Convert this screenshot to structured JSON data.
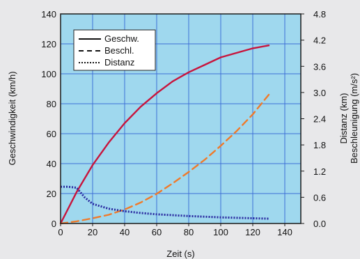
{
  "chart_data": {
    "type": "line",
    "xlabel": "Zeit (s)",
    "ylabel_left": "Geschwindigkeit (km/h)",
    "ylabel_right_1": "Distanz (km)",
    "ylabel_right_2": "Beschleunigung (m/s²)",
    "xlim": [
      0,
      150
    ],
    "ylim_left": [
      0,
      140
    ],
    "ylim_right": [
      0,
      4.8
    ],
    "x_ticks": [
      "0",
      "20",
      "40",
      "60",
      "80",
      "100",
      "120",
      "140"
    ],
    "y_ticks_left": [
      "0",
      "20",
      "40",
      "60",
      "80",
      "100",
      "120",
      "140"
    ],
    "y_ticks_right": [
      "0.0",
      "0.6",
      "1.2",
      "1.8",
      "2.4",
      "3.0",
      "3.6",
      "4.2",
      "4.8"
    ],
    "grid": true,
    "legend_position": "top-left",
    "background_color": "#9fd8ee",
    "series": [
      {
        "name": "Geschw.",
        "axis": "left",
        "style": "solid",
        "color": "#c8143c",
        "x": [
          0,
          10,
          20,
          30,
          40,
          50,
          60,
          70,
          80,
          90,
          100,
          110,
          120,
          130
        ],
        "y": [
          0,
          21,
          39,
          54,
          67,
          78,
          87,
          95,
          101,
          106,
          111,
          114,
          117,
          119
        ]
      },
      {
        "name": "Beschl.",
        "axis": "right",
        "style": "dashed",
        "color": "#f07a2a",
        "x": [
          0,
          10,
          20,
          30,
          40,
          50,
          60,
          70,
          80,
          90,
          100,
          110,
          120,
          130
        ],
        "y": [
          0,
          0.05,
          0.12,
          0.2,
          0.32,
          0.48,
          0.68,
          0.92,
          1.18,
          1.46,
          1.78,
          2.12,
          2.5,
          2.95
        ]
      },
      {
        "name": "Distanz",
        "axis": "right",
        "style": "dotted",
        "color": "#2a2aa0",
        "x": [
          0,
          5,
          10,
          15,
          20,
          30,
          40,
          50,
          60,
          80,
          100,
          120,
          130
        ],
        "y": [
          0.84,
          0.84,
          0.82,
          0.6,
          0.45,
          0.34,
          0.28,
          0.24,
          0.21,
          0.17,
          0.14,
          0.12,
          0.11
        ]
      }
    ]
  }
}
